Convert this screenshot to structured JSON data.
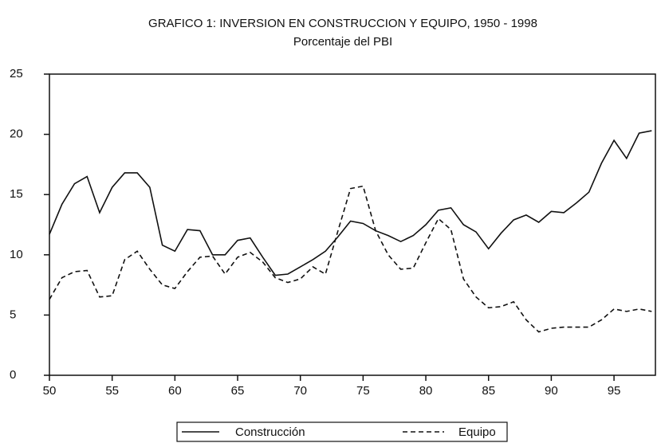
{
  "chart_data": {
    "type": "line",
    "title": "GRAFICO 1: INVERSION EN CONSTRUCCION Y EQUIPO, 1950 - 1998",
    "subtitle": "Porcentaje del PBI",
    "x": [
      50,
      51,
      52,
      53,
      54,
      55,
      56,
      57,
      58,
      59,
      60,
      61,
      62,
      63,
      64,
      65,
      66,
      67,
      68,
      69,
      70,
      71,
      72,
      73,
      74,
      75,
      76,
      77,
      78,
      79,
      80,
      81,
      82,
      83,
      84,
      85,
      86,
      87,
      88,
      89,
      90,
      91,
      92,
      93,
      94,
      95,
      96,
      97,
      98
    ],
    "series": [
      {
        "name": "Construcción",
        "color": "#111111",
        "line_style": "solid",
        "values": [
          11.7,
          14.2,
          15.9,
          16.5,
          13.5,
          15.6,
          16.8,
          16.8,
          15.6,
          10.8,
          10.3,
          12.1,
          12.0,
          10.0,
          10.0,
          11.2,
          11.4,
          9.8,
          8.3,
          8.4,
          9.0,
          9.6,
          10.3,
          11.5,
          12.8,
          12.6,
          12.0,
          11.6,
          11.1,
          11.6,
          12.5,
          13.7,
          13.9,
          12.5,
          11.9,
          10.5,
          11.8,
          12.9,
          13.3,
          12.7,
          13.6,
          13.5,
          14.3,
          15.2,
          17.6,
          19.5,
          18.0,
          20.1,
          20.3
        ]
      },
      {
        "name": "Equipo",
        "color": "#111111",
        "line_style": "dashed",
        "values": [
          6.3,
          8.1,
          8.6,
          8.7,
          6.5,
          6.6,
          9.6,
          10.3,
          8.8,
          7.5,
          7.2,
          8.6,
          9.8,
          9.9,
          8.4,
          9.8,
          10.2,
          9.4,
          8.1,
          7.7,
          8.0,
          9.0,
          8.4,
          12.0,
          15.5,
          15.7,
          12.0,
          10.0,
          8.8,
          8.9,
          11.0,
          13.0,
          12.1,
          8.0,
          6.5,
          5.6,
          5.7,
          6.1,
          4.6,
          3.6,
          3.9,
          4.0,
          4.0,
          4.0,
          4.6,
          5.5,
          5.3,
          5.5,
          5.3
        ]
      }
    ],
    "xlim": [
      50,
      98.3
    ],
    "xticks": [
      50,
      55,
      60,
      65,
      70,
      75,
      80,
      85,
      90,
      95
    ],
    "ylim": [
      0,
      25
    ],
    "yticks": [
      0,
      5,
      10,
      15,
      20,
      25
    ],
    "grid": false,
    "legend": "bottom"
  }
}
